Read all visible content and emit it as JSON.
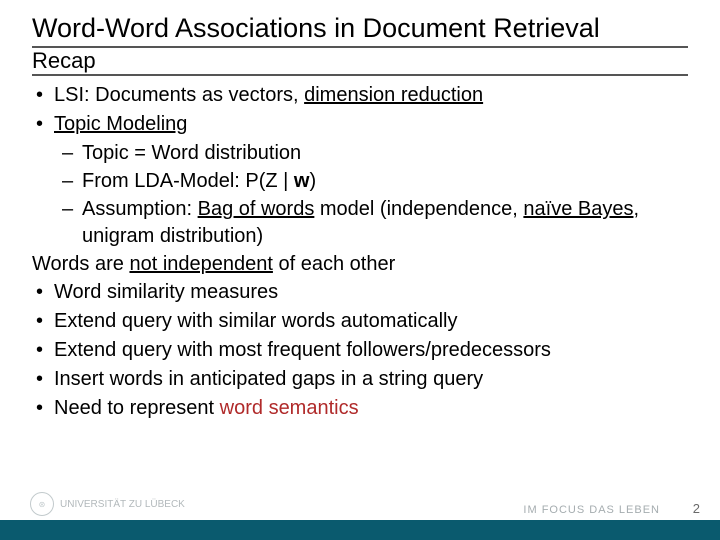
{
  "slide": {
    "title": "Word-Word Associations in Document Retrieval",
    "subtitle": "Recap",
    "bullets_top": [
      {
        "pre": "LSI: Documents as vectors, ",
        "u": "dimension reduction",
        "post": ""
      },
      {
        "pre": "",
        "u": "Topic Modeling",
        "post": ""
      }
    ],
    "sub_bullets": {
      "b0": "Topic = Word distribution",
      "b1_pre": "From LDA-Model: P(Z | ",
      "b1_bold": "w",
      "b1_post": ")",
      "b2_pre": "Assumption: ",
      "b2_u1": "Bag of words",
      "b2_mid": " model (independence, ",
      "b2_u2": "naïve Bayes",
      "b2_post": ", unigram distribution)"
    },
    "statement_pre": "Words are ",
    "statement_u": "not independent",
    "statement_post": " of each other",
    "bullets_bottom": {
      "b0": "Word similarity measures",
      "b1": "Extend query with similar words automatically",
      "b2": "Extend query with most frequent followers/predecessors",
      "b3": "Insert words in anticipated gaps in a string query",
      "b4_pre": "Need to represent ",
      "b4_hl": "word semantics"
    },
    "footer": {
      "left": "UNIVERSITÄT ZU LÜBECK",
      "right": "IM FOCUS DAS LEBEN",
      "page": "2"
    },
    "colors": {
      "highlight": "#b02a2a",
      "bottom_bar": "#0a5a6e",
      "text": "#000000",
      "footer_text": "#7f8a8e"
    }
  }
}
